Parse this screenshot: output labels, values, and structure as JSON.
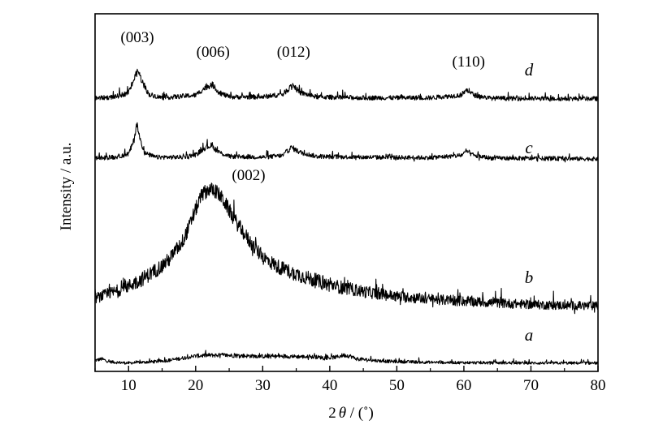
{
  "chart_data": {
    "type": "line",
    "title": "",
    "xlabel": "2θ / (°)",
    "xlabel_parts": {
      "two": "2",
      "theta": "θ",
      "unit": " / (˚)"
    },
    "ylabel": "Intensity / a.u.",
    "xlim": [
      5,
      80
    ],
    "xticks": [
      10,
      20,
      30,
      40,
      50,
      60,
      70,
      80
    ],
    "y_tick_labels": false,
    "grid": false,
    "legend": "none",
    "series": [
      {
        "name": "a",
        "label_at_x": 69.7,
        "baseline": 0.0,
        "noise": 0.55,
        "points": [
          [
            5,
            1.2
          ],
          [
            6,
            1.6
          ],
          [
            7,
            0.9
          ],
          [
            8,
            0.7
          ],
          [
            10,
            0.5
          ],
          [
            12,
            0.7
          ],
          [
            14,
            0.9
          ],
          [
            16,
            1.2
          ],
          [
            18,
            1.8
          ],
          [
            20,
            2.4
          ],
          [
            22,
            2.6
          ],
          [
            24,
            2.6
          ],
          [
            26,
            2.5
          ],
          [
            28,
            2.4
          ],
          [
            30,
            2.3
          ],
          [
            32,
            2.3
          ],
          [
            34,
            2.3
          ],
          [
            36,
            2.2
          ],
          [
            38,
            2.1
          ],
          [
            40,
            1.9
          ],
          [
            41,
            2.1
          ],
          [
            42,
            2.6
          ],
          [
            43,
            2.4
          ],
          [
            44,
            1.6
          ],
          [
            46,
            1.3
          ],
          [
            48,
            1.0
          ],
          [
            50,
            0.9
          ],
          [
            55,
            0.7
          ],
          [
            60,
            0.6
          ],
          [
            65,
            0.55
          ],
          [
            70,
            0.5
          ],
          [
            75,
            0.5
          ],
          [
            80,
            0.5
          ]
        ]
      },
      {
        "name": "b",
        "label_at_x": 69.7,
        "baseline": 0.0,
        "noise": 0.7,
        "points": [
          [
            5,
            1.2
          ],
          [
            8,
            1.9
          ],
          [
            10,
            2.5
          ],
          [
            12,
            3.2
          ],
          [
            14,
            4.1
          ],
          [
            16,
            5.2
          ],
          [
            18,
            7.1
          ],
          [
            19,
            8.6
          ],
          [
            20,
            10.5
          ],
          [
            21,
            12.1
          ],
          [
            22,
            12.6
          ],
          [
            23,
            12.4
          ],
          [
            24,
            11.6
          ],
          [
            25,
            10.4
          ],
          [
            26,
            9.2
          ],
          [
            27,
            8.2
          ],
          [
            28,
            7.2
          ],
          [
            29,
            6.3
          ],
          [
            30,
            5.5
          ],
          [
            32,
            4.6
          ],
          [
            34,
            4.0
          ],
          [
            36,
            3.5
          ],
          [
            38,
            3.0
          ],
          [
            40,
            2.6
          ],
          [
            45,
            1.9
          ],
          [
            50,
            1.4
          ],
          [
            55,
            1.1
          ],
          [
            60,
            0.9
          ],
          [
            65,
            0.7
          ],
          [
            70,
            0.55
          ],
          [
            75,
            0.45
          ],
          [
            80,
            0.4
          ]
        ]
      },
      {
        "name": "c",
        "label_at_x": 69.7,
        "baseline": 0.0,
        "noise": 0.38,
        "points": [
          [
            5,
            0.5
          ],
          [
            8,
            0.6
          ],
          [
            10,
            1.0
          ],
          [
            10.8,
            2.6
          ],
          [
            11.2,
            4.7
          ],
          [
            11.6,
            3.1
          ],
          [
            12.4,
            1.1
          ],
          [
            14,
            0.6
          ],
          [
            18,
            0.6
          ],
          [
            20,
            0.9
          ],
          [
            21.5,
            1.8
          ],
          [
            22.3,
            2.0
          ],
          [
            23.5,
            1.2
          ],
          [
            25,
            0.7
          ],
          [
            30,
            0.6
          ],
          [
            33,
            0.8
          ],
          [
            34.3,
            1.8
          ],
          [
            35.5,
            1.2
          ],
          [
            38,
            0.7
          ],
          [
            45,
            0.6
          ],
          [
            55,
            0.55
          ],
          [
            59.5,
            0.8
          ],
          [
            60.5,
            1.3
          ],
          [
            61.5,
            0.8
          ],
          [
            64,
            0.5
          ],
          [
            70,
            0.45
          ],
          [
            80,
            0.4
          ]
        ]
      },
      {
        "name": "d",
        "label_at_x": 69.7,
        "baseline": 0.0,
        "noise": 0.38,
        "points": [
          [
            5,
            0.45
          ],
          [
            8,
            0.6
          ],
          [
            10,
            1.1
          ],
          [
            10.8,
            2.6
          ],
          [
            11.4,
            3.6
          ],
          [
            12,
            2.4
          ],
          [
            13,
            0.9
          ],
          [
            15,
            0.5
          ],
          [
            20,
            0.8
          ],
          [
            21.5,
            1.7
          ],
          [
            22.5,
            2.0
          ],
          [
            23.5,
            1.1
          ],
          [
            25,
            0.6
          ],
          [
            30,
            0.6
          ],
          [
            33,
            0.9
          ],
          [
            34.5,
            2.0
          ],
          [
            35.5,
            1.1
          ],
          [
            38,
            0.6
          ],
          [
            45,
            0.5
          ],
          [
            55,
            0.5
          ],
          [
            59.5,
            0.8
          ],
          [
            60.5,
            1.4
          ],
          [
            61.5,
            0.8
          ],
          [
            64,
            0.45
          ],
          [
            70,
            0.4
          ],
          [
            80,
            0.4
          ]
        ]
      }
    ],
    "annotations": [
      {
        "text": "(003)",
        "series": "d",
        "x": 11.3
      },
      {
        "text": "(006)",
        "series": "d",
        "x": 22.6
      },
      {
        "text": "(012)",
        "series": "d",
        "x": 34.6
      },
      {
        "text": "(110)",
        "series": "d",
        "x": 60.7
      },
      {
        "text": "(002)",
        "series": "b",
        "x": 27.9
      }
    ]
  }
}
